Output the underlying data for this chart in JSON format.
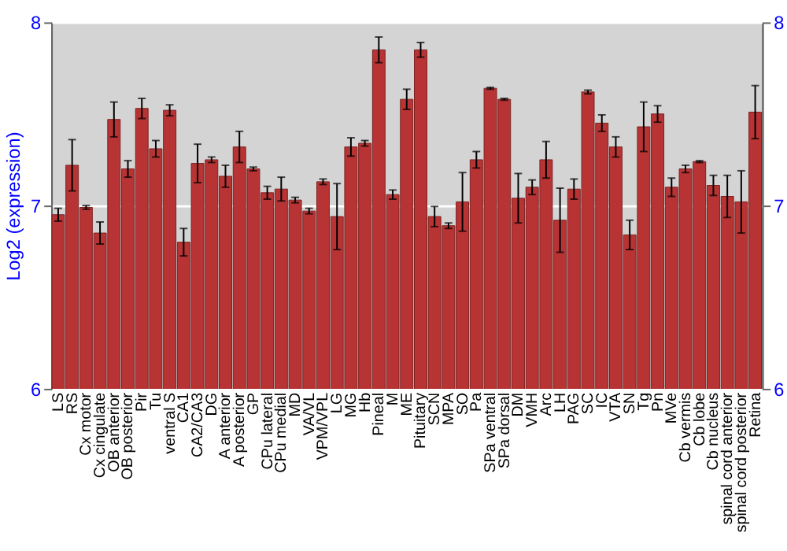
{
  "chart_data": {
    "type": "bar",
    "ylabel": "Log2 (expression)",
    "categories": [
      "LS",
      "RS",
      "Cx motor",
      "Cx cingulate",
      "OB anterior",
      "OB posterior",
      "Pir",
      "Tu",
      "ventral S",
      "CA1",
      "CA2/CA3",
      "DG",
      "A anterior",
      "A posterior",
      "GP",
      "CPu lateral",
      "CPu medial",
      "MD",
      "VA/VL",
      "VPM/VPL",
      "LG",
      "MG",
      "Hb",
      "Pineal",
      "M",
      "ME",
      "Pituitary",
      "SCN",
      "MPA",
      "SO",
      "Pa",
      "SPa ventral",
      "SPa dorsal",
      "DM",
      "VMH",
      "Arc",
      "LH",
      "PAG",
      "SC",
      "IC",
      "VTA",
      "SN",
      "Tg",
      "Pn",
      "MVe",
      "Cb vermis",
      "Cb lobe",
      "Cb nucleus",
      "spinal cord anterior",
      "spinal cord posterior",
      "Retina"
    ],
    "series": [
      {
        "color": "#b83434",
        "values": [
          6.95,
          7.22,
          6.99,
          6.85,
          7.47,
          7.2,
          7.53,
          7.31,
          7.52,
          6.8,
          7.23,
          7.25,
          7.16,
          7.32,
          7.2,
          7.07,
          7.09,
          7.03,
          6.97,
          7.13,
          6.94,
          7.32,
          7.34,
          7.85,
          7.06,
          7.58,
          7.85,
          6.94,
          6.89,
          7.02,
          7.25,
          7.64,
          7.58,
          7.04,
          7.1,
          7.25,
          6.92,
          7.09,
          7.62,
          7.45,
          7.32,
          6.84,
          7.43,
          7.5,
          7.1,
          7.2,
          7.24,
          7.11,
          7.05,
          7.02,
          7.51
        ],
        "errors": [
          0.035,
          0.14,
          0.01,
          0.06,
          0.095,
          0.045,
          0.055,
          0.045,
          0.03,
          0.075,
          0.105,
          0.015,
          0.06,
          0.085,
          0.01,
          0.035,
          0.065,
          0.015,
          0.015,
          0.015,
          0.18,
          0.05,
          0.015,
          0.07,
          0.025,
          0.055,
          0.04,
          0.055,
          0.015,
          0.16,
          0.045,
          0.005,
          0.005,
          0.135,
          0.04,
          0.1,
          0.175,
          0.055,
          0.01,
          0.045,
          0.055,
          0.08,
          0.135,
          0.045,
          0.05,
          0.02,
          0.005,
          0.055,
          0.115,
          0.17,
          0.145
        ]
      }
    ],
    "ylim": [
      6,
      8
    ],
    "yticks": [
      6,
      7,
      8
    ],
    "y2lim": [
      6,
      8
    ],
    "y2ticks": [
      6,
      7,
      8
    ],
    "grid": "y"
  }
}
